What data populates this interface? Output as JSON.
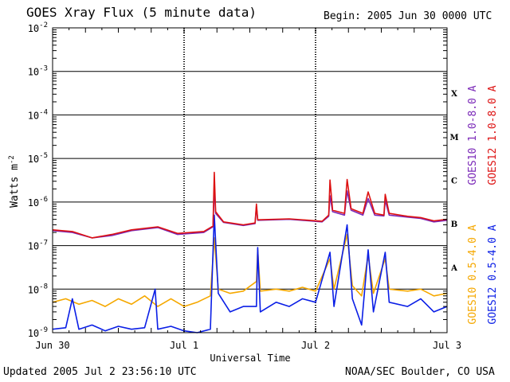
{
  "header": {
    "title": "GOES Xray Flux (5 minute data)",
    "begin": "Begin:  2005 Jun 30 0000 UTC"
  },
  "footer": {
    "updated": "Updated 2005 Jul  2 23:56:10 UTC",
    "credit": "NOAA/SEC Boulder, CO USA"
  },
  "chart_data": {
    "type": "line",
    "title": "GOES Xray Flux (5 minute data)",
    "xlabel": "Universal Time",
    "ylabel": "Watts m",
    "ylabel_sup": "-2",
    "y_scale": "log",
    "ylim": [
      1e-09,
      0.01
    ],
    "y_ticks": [
      {
        "value": 1e-09,
        "base": "10",
        "exp": "-9"
      },
      {
        "value": 1e-08,
        "base": "10",
        "exp": "-8"
      },
      {
        "value": 1e-07,
        "base": "10",
        "exp": "-7"
      },
      {
        "value": 1e-06,
        "base": "10",
        "exp": "-6"
      },
      {
        "value": 1e-05,
        "base": "10",
        "exp": "-5"
      },
      {
        "value": 0.0001,
        "base": "10",
        "exp": "-4"
      },
      {
        "value": 0.001,
        "base": "10",
        "exp": "-3"
      },
      {
        "value": 0.01,
        "base": "10",
        "exp": "-2"
      }
    ],
    "x_range_days": [
      0,
      3
    ],
    "x_ticks": [
      {
        "day": 0,
        "label": "Jun 30"
      },
      {
        "day": 1,
        "label": "Jul 1"
      },
      {
        "day": 2,
        "label": "Jul 2"
      },
      {
        "day": 3,
        "label": "Jul 3"
      }
    ],
    "flare_classes": [
      {
        "label": "A",
        "value": 3.16e-08
      },
      {
        "label": "B",
        "value": 3.16e-07
      },
      {
        "label": "C",
        "value": 3.16e-06
      },
      {
        "label": "M",
        "value": 3.16e-05
      },
      {
        "label": "X",
        "value": 0.000316
      }
    ],
    "grid": "horizontal solid at decades; vertical dashed at day boundaries",
    "series": [
      {
        "name": "GOES10 1.0-8.0 A",
        "color": "#7a28b8",
        "points": [
          [
            0,
            2.2e-07
          ],
          [
            0.15,
            2e-07
          ],
          [
            0.3,
            1.5e-07
          ],
          [
            0.45,
            1.7e-07
          ],
          [
            0.6,
            2.2e-07
          ],
          [
            0.8,
            2.6e-07
          ],
          [
            0.95,
            1.8e-07
          ],
          [
            1.15,
            2e-07
          ],
          [
            1.22,
            2.7e-07
          ],
          [
            1.23,
            2.4e-06
          ],
          [
            1.24,
            5.5e-07
          ],
          [
            1.3,
            3.4e-07
          ],
          [
            1.45,
            2.9e-07
          ],
          [
            1.54,
            3.2e-07
          ],
          [
            1.55,
            8e-07
          ],
          [
            1.56,
            3.8e-07
          ],
          [
            1.8,
            4e-07
          ],
          [
            1.95,
            3.7e-07
          ],
          [
            2.05,
            3.5e-07
          ],
          [
            2.1,
            4.7e-07
          ],
          [
            2.11,
            1.4e-06
          ],
          [
            2.13,
            6e-07
          ],
          [
            2.22,
            5e-07
          ],
          [
            2.24,
            1.8e-06
          ],
          [
            2.27,
            6.5e-07
          ],
          [
            2.36,
            5e-07
          ],
          [
            2.4,
            1.2e-06
          ],
          [
            2.45,
            5e-07
          ],
          [
            2.52,
            4.8e-07
          ],
          [
            2.53,
            1.1e-06
          ],
          [
            2.56,
            5e-07
          ],
          [
            2.7,
            4.5e-07
          ],
          [
            2.8,
            4.2e-07
          ],
          [
            2.9,
            3.5e-07
          ],
          [
            3,
            3.8e-07
          ]
        ]
      },
      {
        "name": "GOES12 1.0-8.0 A",
        "color": "#dd1111",
        "points": [
          [
            0,
            2.3e-07
          ],
          [
            0.15,
            2.1e-07
          ],
          [
            0.3,
            1.5e-07
          ],
          [
            0.45,
            1.8e-07
          ],
          [
            0.6,
            2.3e-07
          ],
          [
            0.8,
            2.7e-07
          ],
          [
            0.95,
            1.9e-07
          ],
          [
            1.15,
            2.1e-07
          ],
          [
            1.22,
            2.8e-07
          ],
          [
            1.23,
            4.8e-06
          ],
          [
            1.24,
            6e-07
          ],
          [
            1.3,
            3.5e-07
          ],
          [
            1.45,
            3e-07
          ],
          [
            1.54,
            3.3e-07
          ],
          [
            1.55,
            9e-07
          ],
          [
            1.56,
            3.9e-07
          ],
          [
            1.8,
            4.1e-07
          ],
          [
            1.95,
            3.8e-07
          ],
          [
            2.05,
            3.6e-07
          ],
          [
            2.1,
            5e-07
          ],
          [
            2.11,
            3.2e-06
          ],
          [
            2.13,
            6.5e-07
          ],
          [
            2.22,
            5.5e-07
          ],
          [
            2.24,
            3.3e-06
          ],
          [
            2.27,
            7e-07
          ],
          [
            2.36,
            5.5e-07
          ],
          [
            2.4,
            1.7e-06
          ],
          [
            2.45,
            5.5e-07
          ],
          [
            2.52,
            5e-07
          ],
          [
            2.53,
            1.5e-06
          ],
          [
            2.56,
            5.5e-07
          ],
          [
            2.7,
            4.7e-07
          ],
          [
            2.8,
            4.4e-07
          ],
          [
            2.9,
            3.7e-07
          ],
          [
            3,
            4e-07
          ]
        ]
      },
      {
        "name": "GOES10 0.5-4.0 A",
        "color": "#f5a800",
        "points": [
          [
            0,
            5e-09
          ],
          [
            0.1,
            6e-09
          ],
          [
            0.2,
            4.5e-09
          ],
          [
            0.3,
            5.5e-09
          ],
          [
            0.4,
            4e-09
          ],
          [
            0.5,
            6e-09
          ],
          [
            0.6,
            4.5e-09
          ],
          [
            0.7,
            7e-09
          ],
          [
            0.8,
            4e-09
          ],
          [
            0.9,
            6e-09
          ],
          [
            1.0,
            4e-09
          ],
          [
            1.1,
            5e-09
          ],
          [
            1.2,
            7e-09
          ],
          [
            1.23,
            1.5e-07
          ],
          [
            1.26,
            1e-08
          ],
          [
            1.35,
            8e-09
          ],
          [
            1.45,
            9e-09
          ],
          [
            1.55,
            1.5e-08
          ],
          [
            1.56,
            8e-08
          ],
          [
            1.58,
            9e-09
          ],
          [
            1.7,
            1e-08
          ],
          [
            1.8,
            9e-09
          ],
          [
            1.9,
            1.1e-08
          ],
          [
            2.0,
            9e-09
          ],
          [
            2.11,
            5e-08
          ],
          [
            2.14,
            1e-08
          ],
          [
            2.24,
            1.8e-07
          ],
          [
            2.28,
            1.2e-08
          ],
          [
            2.35,
            7e-09
          ],
          [
            2.4,
            6e-08
          ],
          [
            2.44,
            8e-09
          ],
          [
            2.53,
            5e-08
          ],
          [
            2.56,
            1e-08
          ],
          [
            2.7,
            9e-09
          ],
          [
            2.8,
            1e-08
          ],
          [
            2.9,
            7e-09
          ],
          [
            3.0,
            8e-09
          ]
        ]
      },
      {
        "name": "GOES12 0.5-4.0 A",
        "color": "#0a1ee6",
        "points": [
          [
            0,
            1.2e-09
          ],
          [
            0.1,
            1.3e-09
          ],
          [
            0.15,
            6e-09
          ],
          [
            0.2,
            1.2e-09
          ],
          [
            0.3,
            1.5e-09
          ],
          [
            0.4,
            1.1e-09
          ],
          [
            0.5,
            1.4e-09
          ],
          [
            0.6,
            1.2e-09
          ],
          [
            0.7,
            1.3e-09
          ],
          [
            0.78,
            1e-08
          ],
          [
            0.8,
            1.2e-09
          ],
          [
            0.9,
            1.4e-09
          ],
          [
            1.0,
            1.1e-09
          ],
          [
            1.1,
            1e-09
          ],
          [
            1.2,
            1.2e-09
          ],
          [
            1.23,
            5e-07
          ],
          [
            1.26,
            8e-09
          ],
          [
            1.35,
            3e-09
          ],
          [
            1.45,
            4e-09
          ],
          [
            1.55,
            4e-09
          ],
          [
            1.56,
            9e-08
          ],
          [
            1.58,
            3e-09
          ],
          [
            1.7,
            5e-09
          ],
          [
            1.8,
            4e-09
          ],
          [
            1.9,
            6e-09
          ],
          [
            2.0,
            5e-09
          ],
          [
            2.11,
            7e-08
          ],
          [
            2.14,
            4e-09
          ],
          [
            2.24,
            3e-07
          ],
          [
            2.28,
            6e-09
          ],
          [
            2.35,
            1.5e-09
          ],
          [
            2.4,
            8e-08
          ],
          [
            2.44,
            3e-09
          ],
          [
            2.53,
            7e-08
          ],
          [
            2.56,
            5e-09
          ],
          [
            2.7,
            4e-09
          ],
          [
            2.8,
            6e-09
          ],
          [
            2.9,
            3e-09
          ],
          [
            3.0,
            4e-09
          ]
        ]
      }
    ]
  }
}
